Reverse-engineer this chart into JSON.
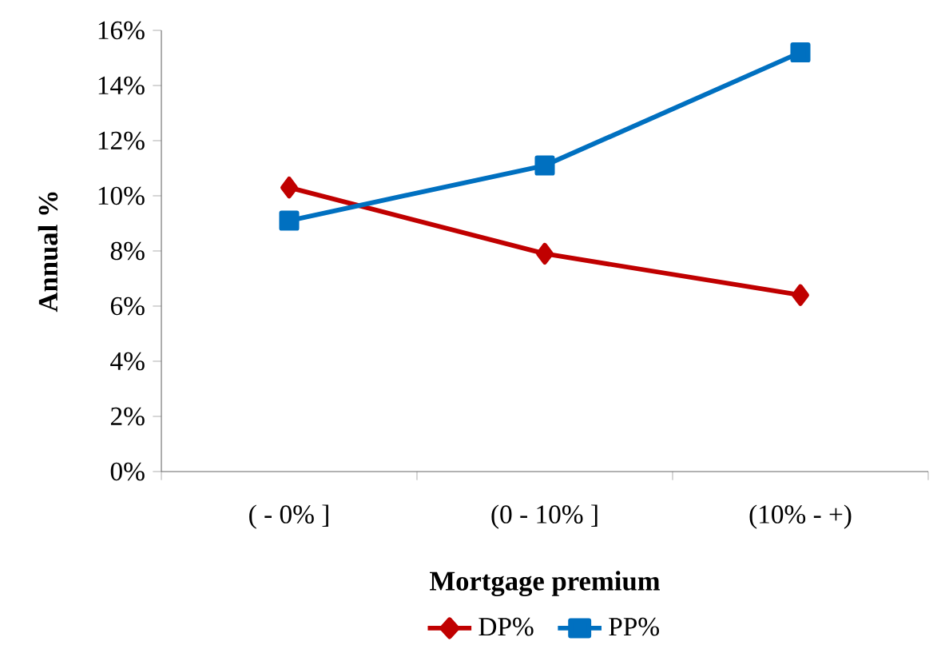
{
  "chart_data": {
    "type": "line",
    "xlabel": "Mortgage premium",
    "ylabel": "Annual %",
    "categories": [
      "( - 0% ]",
      "(0 - 10% ]",
      "(10% - +)"
    ],
    "series": [
      {
        "name": "DP%",
        "color": "#c00000",
        "marker": "diamond",
        "values": [
          10.3,
          7.9,
          6.4
        ]
      },
      {
        "name": "PP%",
        "color": "#0070c0",
        "marker": "square",
        "values": [
          9.1,
          11.1,
          15.2
        ]
      }
    ],
    "ylim": [
      0,
      16
    ],
    "yticks": [
      {
        "value": 0,
        "label": "0%"
      },
      {
        "value": 2,
        "label": "2%"
      },
      {
        "value": 4,
        "label": "4%"
      },
      {
        "value": 6,
        "label": "6%"
      },
      {
        "value": 8,
        "label": "8%"
      },
      {
        "value": 10,
        "label": "10%"
      },
      {
        "value": 12,
        "label": "12%"
      },
      {
        "value": 14,
        "label": "14%"
      },
      {
        "value": 16,
        "label": "16%"
      }
    ],
    "grid": false,
    "legend": "bottom",
    "line_style": "solid"
  }
}
